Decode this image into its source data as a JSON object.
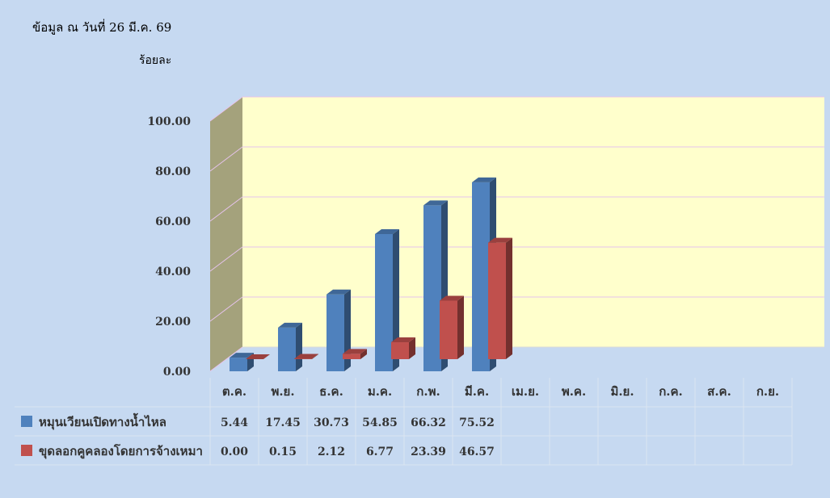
{
  "note": "ข้อมูล ณ วันที่ 26 มี.ค. 69",
  "chart_data": {
    "type": "bar",
    "ylabel": "ร้อยละ",
    "ylim": [
      0,
      100
    ],
    "yticks": [
      "0.00",
      "20.00",
      "40.00",
      "60.00",
      "80.00",
      "100.00"
    ],
    "grid": true,
    "legend": "bottom-left data table",
    "categories": [
      "ต.ค.",
      "พ.ย.",
      "ธ.ค.",
      "ม.ค.",
      "ก.พ.",
      "มี.ค.",
      "เม.ย.",
      "พ.ค.",
      "มิ.ย.",
      "ก.ค.",
      "ส.ค.",
      "ก.ย."
    ],
    "series": [
      {
        "name": "หมุนเวียนเปิดทางน้ำไหล",
        "color": "#4f81bd",
        "values": [
          5.44,
          17.45,
          30.73,
          54.85,
          66.32,
          75.52,
          null,
          null,
          null,
          null,
          null,
          null
        ],
        "labels": [
          "5.44",
          "17.45",
          "30.73",
          "54.85",
          "66.32",
          "75.52",
          "",
          "",
          "",
          "",
          "",
          ""
        ]
      },
      {
        "name": "ขุดลอกคูคลองโดยการจ้างเหมา",
        "color": "#c0504d",
        "values": [
          0.0,
          0.15,
          2.12,
          6.77,
          23.39,
          46.57,
          null,
          null,
          null,
          null,
          null,
          null
        ],
        "labels": [
          "0.00",
          "0.15",
          "2.12",
          "6.77",
          "23.39",
          "46.57",
          "",
          "",
          "",
          "",
          "",
          ""
        ]
      }
    ],
    "colors": {
      "back_wall": "#ffffcc",
      "side_wall": "#a4a27c",
      "gridline": "#e6c3ec",
      "background": "#c6d9f1"
    }
  }
}
